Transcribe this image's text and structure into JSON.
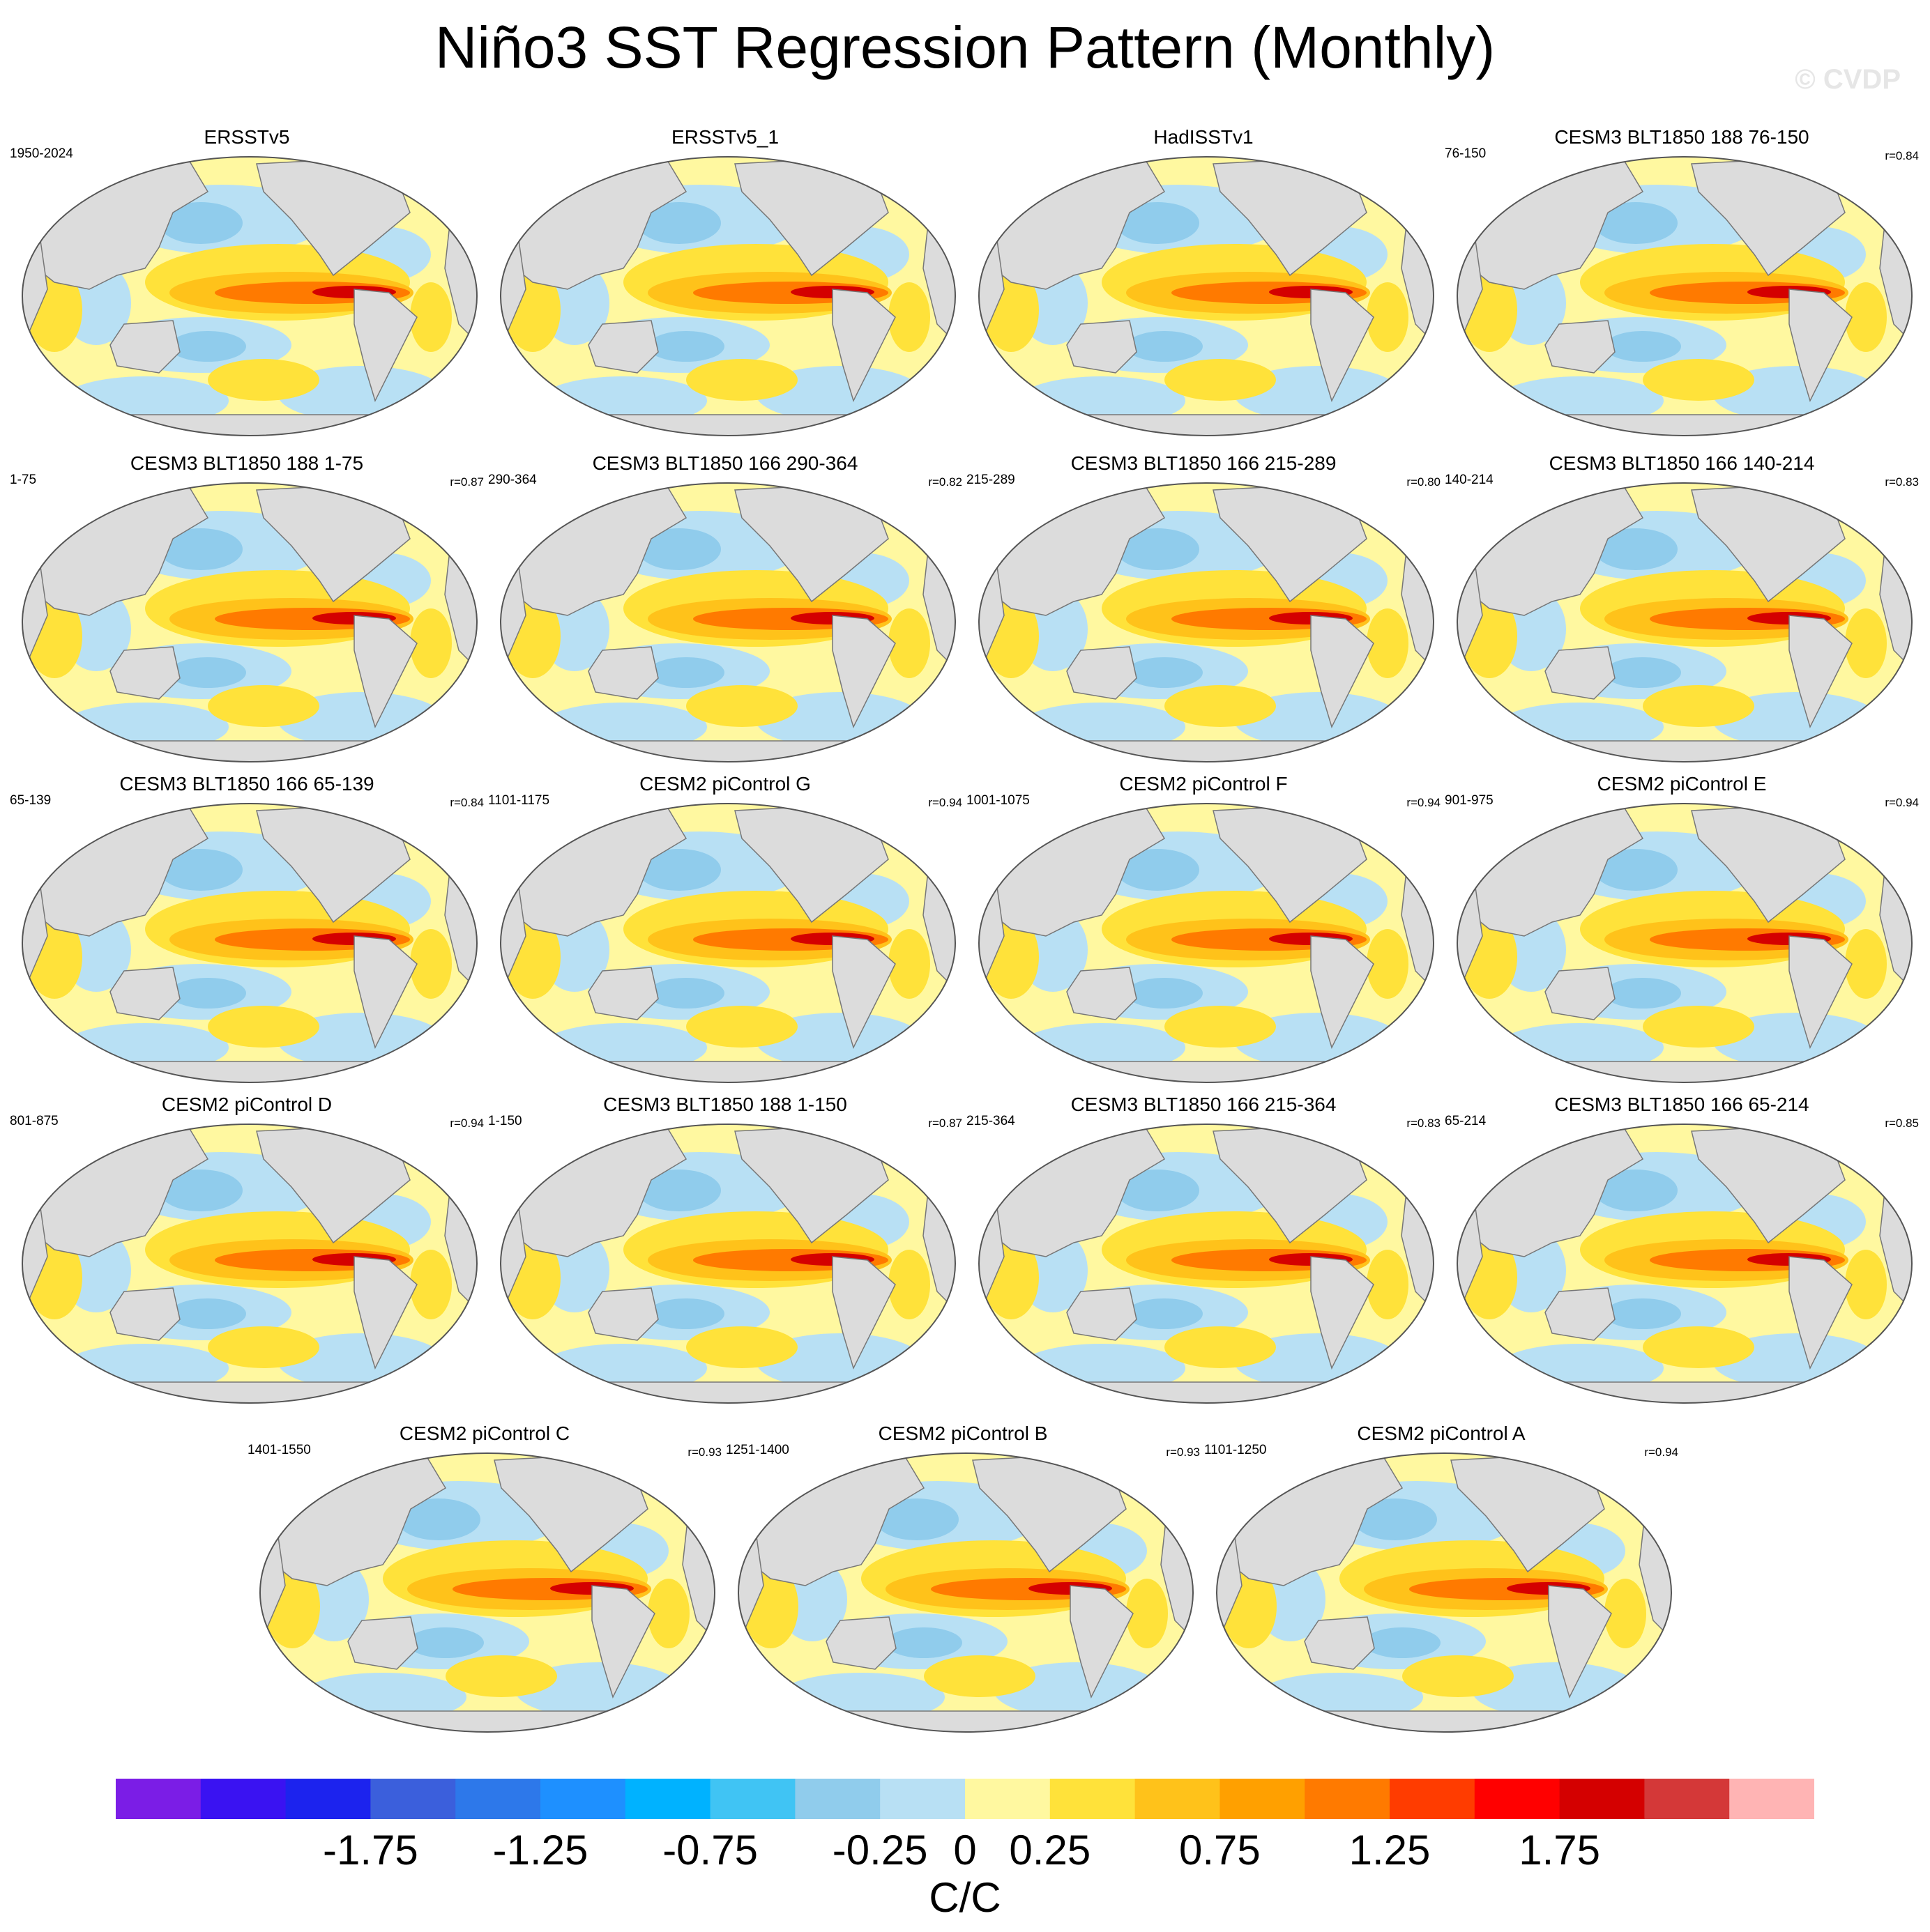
{
  "title": "Niño3 SST Regression Pattern (Monthly)",
  "watermark": "© CVDP",
  "panels": [
    {
      "name": "ERSSTv5",
      "years": "1950-2024",
      "corr": ""
    },
    {
      "name": "ERSSTv5_1",
      "years": "",
      "corr": ""
    },
    {
      "name": "HadISSTv1",
      "years": "",
      "corr": ""
    },
    {
      "name": "CESM3 BLT1850 188 76-150",
      "years": "76-150",
      "corr": "r=0.84"
    },
    {
      "name": "CESM3 BLT1850 188 1-75",
      "years": "1-75",
      "corr": "r=0.87"
    },
    {
      "name": "CESM3 BLT1850 166 290-364",
      "years": "290-364",
      "corr": "r=0.82"
    },
    {
      "name": "CESM3 BLT1850 166 215-289",
      "years": "215-289",
      "corr": "r=0.80"
    },
    {
      "name": "CESM3 BLT1850 166 140-214",
      "years": "140-214",
      "corr": "r=0.83"
    },
    {
      "name": "CESM3 BLT1850 166 65-139",
      "years": "65-139",
      "corr": "r=0.84"
    },
    {
      "name": "CESM2 piControl G",
      "years": "1101-1175",
      "corr": "r=0.94"
    },
    {
      "name": "CESM2 piControl F",
      "years": "1001-1075",
      "corr": "r=0.94"
    },
    {
      "name": "CESM2 piControl E",
      "years": "901-975",
      "corr": "r=0.94"
    },
    {
      "name": "CESM2 piControl D",
      "years": "801-875",
      "corr": "r=0.94"
    },
    {
      "name": "CESM3 BLT1850 188 1-150",
      "years": "1-150",
      "corr": "r=0.87"
    },
    {
      "name": "CESM3 BLT1850 166 215-364",
      "years": "215-364",
      "corr": "r=0.83"
    },
    {
      "name": "CESM3 BLT1850 166 65-214",
      "years": "65-214",
      "corr": "r=0.85"
    },
    {
      "name": "CESM2 piControl C",
      "years": "1401-1550",
      "corr": "r=0.93"
    },
    {
      "name": "CESM2 piControl B",
      "years": "1251-1400",
      "corr": "r=0.93"
    },
    {
      "name": "CESM2 piControl A",
      "years": "1101-1250",
      "corr": "r=0.94"
    }
  ],
  "colorbar": {
    "units": "C/C",
    "labels": [
      "-1.75",
      "-1.25",
      "-0.75",
      "-0.25",
      "0",
      "0.25",
      "0.75",
      "1.25",
      "1.75"
    ],
    "colors": [
      "#7b1de6",
      "#3a12f2",
      "#1c23ee",
      "#3b5fdc",
      "#2d78ea",
      "#1e90ff",
      "#00b2ff",
      "#40c4f4",
      "#90ccec",
      "#b8e0f4",
      "#fff8a0",
      "#ffe23a",
      "#ffc21a",
      "#ffa000",
      "#ff7a00",
      "#ff3c00",
      "#ff0000",
      "#d40000",
      "#d43838",
      "#ffb4b4"
    ]
  },
  "map_colors": {
    "land": "#dcdcdc",
    "coast": "#777777",
    "ocean_neutral": "#fff8a0",
    "negative_weak": "#b8e0f4",
    "negative": "#90ccec",
    "negative_strong": "#40c4f4",
    "positive_weak": "#ffe23a",
    "positive": "#ffc21a",
    "positive_strong": "#ff7a00",
    "core": "#d40000"
  }
}
